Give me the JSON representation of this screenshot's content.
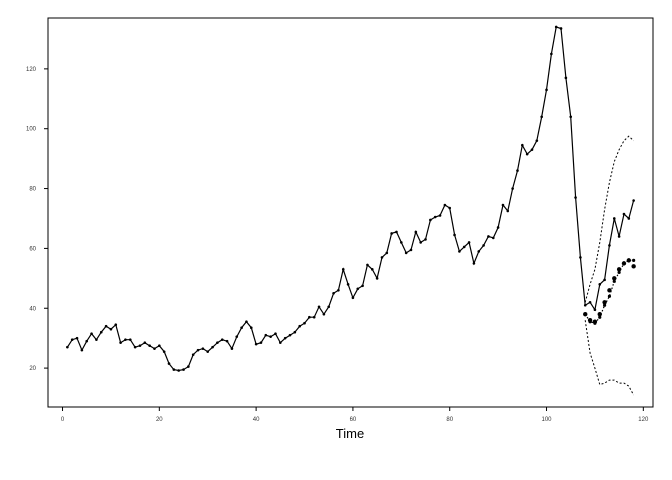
{
  "chart_data": {
    "type": "line",
    "title": "",
    "xlabel": "Time",
    "ylabel": "",
    "xlim": [
      -3,
      122
    ],
    "ylim": [
      7,
      137
    ],
    "x_ticks": [
      0,
      20,
      40,
      60,
      80,
      100,
      120
    ],
    "y_ticks": [
      20,
      40,
      60,
      80,
      100,
      120
    ],
    "x_tick_labels": [
      "0",
      "20",
      "40",
      "60",
      "80",
      "100",
      "120"
    ],
    "y_tick_labels": [
      "20",
      "40",
      "60",
      "80",
      "100",
      "120"
    ],
    "grid": false,
    "legend": "none",
    "series": [
      {
        "style": "solid-points",
        "x": [
          1,
          2,
          3,
          4,
          5,
          6,
          7,
          8,
          9,
          10,
          11,
          12,
          13,
          14,
          15,
          16,
          17,
          18,
          19,
          20,
          21,
          22,
          23,
          24,
          25,
          26,
          27,
          28,
          29,
          30,
          31,
          32,
          33,
          34,
          35,
          36,
          37,
          38,
          39,
          40,
          41,
          42,
          43,
          44,
          45,
          46,
          47,
          48,
          49,
          50,
          51,
          52,
          53,
          54,
          55,
          56,
          57,
          58,
          59,
          60,
          61,
          62,
          63,
          64,
          65,
          66,
          67,
          68,
          69,
          70,
          71,
          72,
          73,
          74,
          75,
          76,
          77,
          78,
          79,
          80,
          81,
          82,
          83,
          84,
          85,
          86,
          87,
          88,
          89,
          90,
          91,
          92,
          93,
          94,
          95,
          96,
          97,
          98,
          99,
          100,
          101,
          102,
          103,
          104,
          105,
          106,
          107,
          108,
          109,
          110,
          111,
          112,
          113,
          114,
          115,
          116,
          117,
          118
        ],
        "y": [
          27,
          29.5,
          30,
          26,
          29,
          31.5,
          29.5,
          32,
          34,
          33,
          34.5,
          28.5,
          29.5,
          29.5,
          27,
          27.5,
          28.5,
          27.5,
          26.5,
          27.5,
          25.5,
          21.5,
          19.5,
          19.2,
          19.5,
          20.5,
          24.5,
          26,
          26.5,
          25.5,
          27,
          28.5,
          29.5,
          29,
          26.5,
          30.5,
          33.5,
          35.5,
          33.5,
          28,
          28.5,
          31,
          30.5,
          31.5,
          28.5,
          30,
          31,
          32,
          34,
          35,
          37,
          37,
          40.5,
          38,
          40.5,
          45,
          46,
          53,
          48,
          43.5,
          46.5,
          47.5,
          54.5,
          53,
          50,
          57,
          58.5,
          65,
          65.5,
          62,
          58.5,
          59.5,
          65.5,
          62,
          63,
          69.5,
          70.5,
          71,
          74.5,
          73.5,
          64.5,
          59,
          60.5,
          62,
          55,
          59,
          61,
          64,
          63.5,
          67,
          74.5,
          72.5,
          80,
          86,
          94.5,
          91.5,
          93,
          96,
          104,
          113,
          125,
          134,
          133.5,
          117,
          104,
          77,
          57,
          41,
          42,
          39.5,
          48,
          49.5,
          61,
          70,
          64,
          71.5,
          70,
          76
        ]
      },
      {
        "style": "dotted-points",
        "x": [
          108,
          109,
          110,
          111,
          112,
          113,
          114,
          115,
          116,
          117,
          118
        ],
        "y": [
          38,
          35.5,
          35,
          37,
          41,
          44,
          49,
          52,
          55,
          56,
          56
        ]
      },
      {
        "style": "bold-points",
        "x": [
          108,
          109,
          110,
          111,
          112,
          113,
          114,
          115,
          116,
          117,
          118
        ],
        "y": [
          38,
          36,
          35.5,
          38,
          42,
          46,
          50,
          53,
          55,
          56,
          54
        ]
      },
      {
        "style": "dashed",
        "x": [
          108,
          109,
          110,
          111,
          112,
          113,
          114,
          115,
          116,
          117,
          118
        ],
        "y": [
          42,
          48,
          53,
          62,
          73,
          82,
          89,
          93,
          96,
          97.5,
          96
        ]
      },
      {
        "style": "dashed",
        "x": [
          108,
          109,
          110,
          111,
          112,
          113,
          114,
          115,
          116,
          117,
          118
        ],
        "y": [
          36,
          25,
          20,
          14.5,
          15,
          16,
          16,
          15,
          15,
          14,
          11
        ]
      }
    ]
  }
}
